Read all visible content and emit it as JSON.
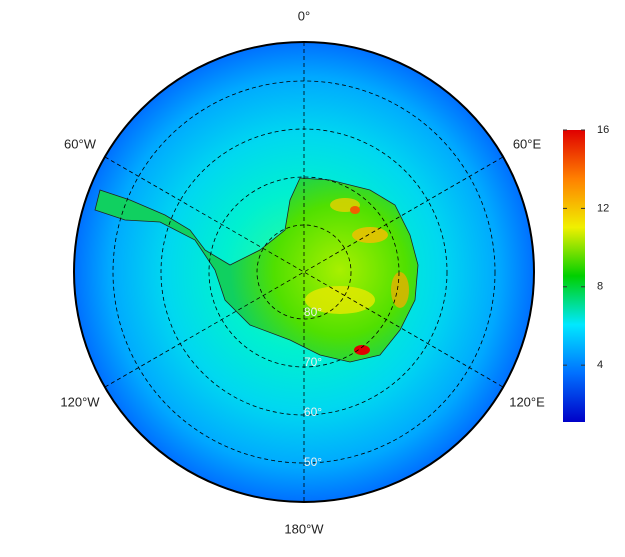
{
  "map": {
    "longitude_labels": [
      "0°",
      "60°E",
      "120°E",
      "180°W",
      "120°W",
      "60°W"
    ],
    "latitude_labels": [
      "80°",
      "70°",
      "60°",
      "50°"
    ],
    "colorbar": {
      "lim": [
        1.1,
        16
      ],
      "ticks": [
        4,
        8,
        12,
        16
      ],
      "colors": [
        "#0000c8",
        "#0070ff",
        "#00e8ff",
        "#00d000",
        "#f0f000",
        "#ff8000",
        "#e00000"
      ]
    }
  }
}
